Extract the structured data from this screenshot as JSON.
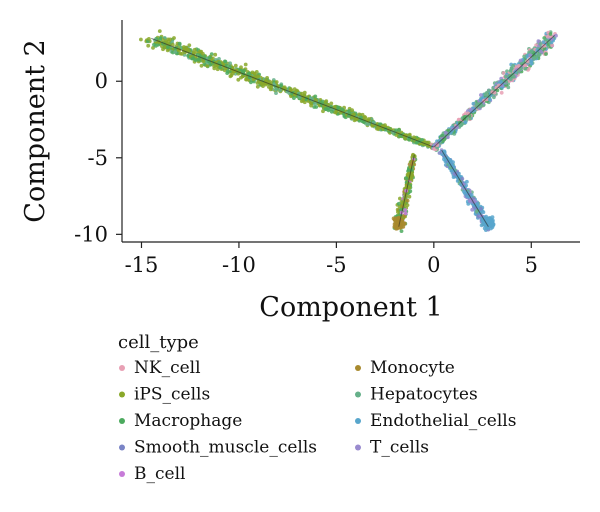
{
  "chart_data": {
    "type": "scatter",
    "title": "",
    "xlabel": "Component 1",
    "ylabel": "Component 2",
    "xlim": [
      -16,
      7.5
    ],
    "ylim": [
      -10.5,
      4
    ],
    "xticks": [
      -15,
      -10,
      -5,
      0,
      5
    ],
    "yticks": [
      0,
      -5,
      -10
    ],
    "grid": false,
    "legend": {
      "title": "cell_type",
      "placement": "bottom",
      "columns": 2
    },
    "series": [
      {
        "name": "NK_cell",
        "color": "#e8a0b4"
      },
      {
        "name": "iPS_cells",
        "color": "#8aa82a"
      },
      {
        "name": "Macrophage",
        "color": "#4caa5e"
      },
      {
        "name": "Smooth_muscle_cells",
        "color": "#7a84c6"
      },
      {
        "name": "B_cell",
        "color": "#c77bd8"
      },
      {
        "name": "Monocyte",
        "color": "#a88a2e"
      },
      {
        "name": "Hepatocytes",
        "color": "#66b08a"
      },
      {
        "name": "Endothelial_cells",
        "color": "#58a6cc"
      },
      {
        "name": "T_cells",
        "color": "#9a8bcf"
      }
    ],
    "trajectory": {
      "description_free": true,
      "branch_point": [
        0,
        -4.3
      ],
      "branches": [
        {
          "from": [
            -14.5,
            2.8
          ],
          "to": [
            0,
            -4.3
          ],
          "dominant": "iPS_cells"
        },
        {
          "from": [
            0,
            -4.3
          ],
          "to": [
            6.2,
            3.0
          ],
          "dominant": "Hepatocytes"
        },
        {
          "from": [
            -1.0,
            -4.8
          ],
          "to": [
            -1.8,
            -9.5
          ],
          "dominant": "Monocyte"
        },
        {
          "from": [
            0.4,
            -4.5
          ],
          "to": [
            2.8,
            -9.5
          ],
          "dominant": "Endothelial_cells"
        }
      ]
    }
  }
}
